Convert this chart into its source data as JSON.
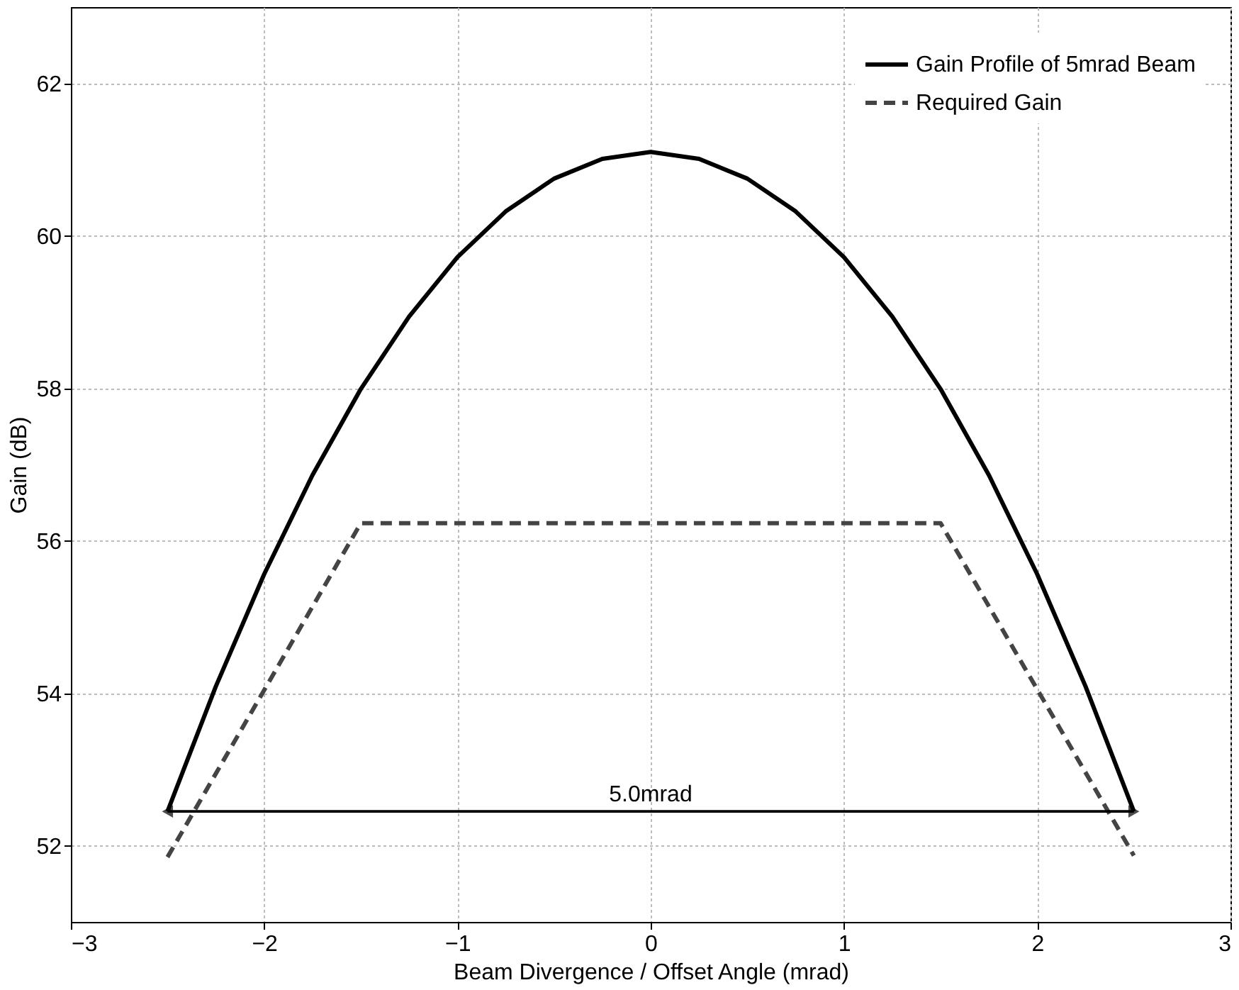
{
  "chart_data": {
    "type": "line",
    "xlabel": "Beam Divergence / Offset Angle (mrad)",
    "ylabel": "Gain (dB)",
    "xlim": [
      -3,
      3
    ],
    "xticks": [
      -3,
      -2,
      -1,
      0,
      1,
      2,
      3
    ],
    "ylim": [
      51,
      63
    ],
    "yticks": [
      52,
      54,
      56,
      58,
      60,
      62
    ],
    "grid": true,
    "legend": "top right",
    "marker": "none",
    "series": [
      {
        "name": "Gain Profile of 5mrad Beam",
        "color": "#000000",
        "line_style": "solid",
        "x": [
          -2.5,
          -2.25,
          -2,
          -1.75,
          -1.5,
          -1.25,
          -1,
          -0.75,
          -0.5,
          -0.25,
          0,
          0.25,
          0.5,
          0.75,
          1,
          1.25,
          1.5,
          1.75,
          2,
          2.25,
          2.5
        ],
        "values": [
          52.45,
          54.09,
          55.56,
          56.86,
          57.99,
          58.94,
          59.72,
          60.32,
          60.75,
          61.01,
          61.1,
          61.01,
          60.75,
          60.32,
          59.72,
          58.94,
          57.99,
          56.86,
          55.56,
          54.09,
          52.45
        ]
      },
      {
        "name": "Required Gain",
        "color": "#444444",
        "line_style": "dashed",
        "x": [
          -2.5,
          -1.5,
          1.5,
          2.5
        ],
        "values": [
          51.85,
          56.23,
          56.23,
          51.87
        ]
      },
      {
        "type": "line",
        "color": "#000000",
        "line_style": "solid",
        "x": [
          -2.5,
          2.5
        ],
        "values": [
          52.45,
          52.45
        ]
      }
    ],
    "annotations": [
      {
        "text": "5.0mrad",
        "x": 0,
        "y": 52.45
      }
    ]
  }
}
